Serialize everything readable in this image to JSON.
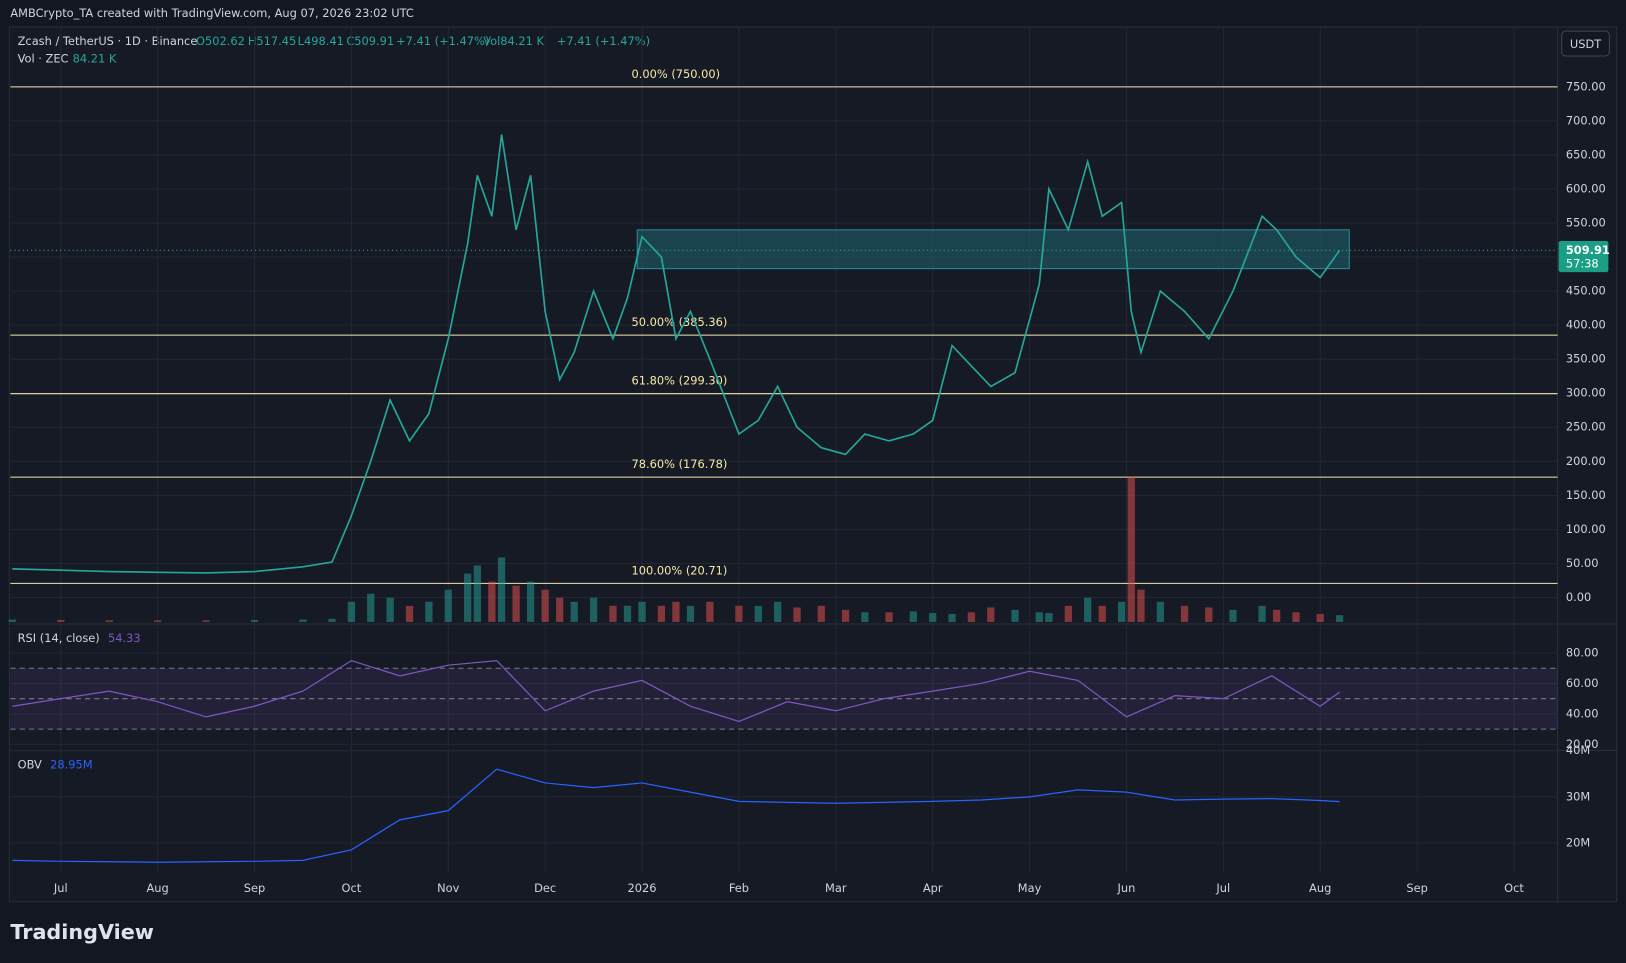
{
  "header": {
    "credit": "AMBCrypto_TA created with TradingView.com, Aug 07, 2026 23:02 UTC",
    "ohlc": [
      "O502.62",
      "H517.45",
      "L498.41",
      "C509.91"
    ],
    "change": "+7.41 (+1.47%)",
    "vol": "Vol84.21 K",
    "vol_change": "+7.41 (+1.47%)",
    "vol_legend": "Vol · ZEC",
    "vol_legend_value": "84.21 K",
    "currency": "USDT",
    "countdown": "57:38",
    "brand": "TradingView"
  },
  "chart_data": [
    {
      "type": "line",
      "title": "Zcash / TetherUS · 1D · Binance",
      "color": "#26a69a",
      "down_color": "#ef5350",
      "grid": true,
      "x": [
        -0.5,
        0,
        0.5,
        1,
        1.5,
        2,
        2.5,
        2.8,
        3.0,
        3.2,
        3.4,
        3.6,
        3.8,
        4.0,
        4.2,
        4.3,
        4.45,
        4.55,
        4.7,
        4.85,
        5.0,
        5.15,
        5.3,
        5.5,
        5.7,
        5.85,
        6.0,
        6.2,
        6.35,
        6.5,
        6.7,
        7.0,
        7.2,
        7.4,
        7.6,
        7.85,
        8.1,
        8.3,
        8.55,
        8.8,
        9.0,
        9.2,
        9.4,
        9.6,
        9.85,
        10.1,
        10.2,
        10.4,
        10.6,
        10.75,
        10.95,
        11.05,
        11.15,
        11.35,
        11.6,
        11.85,
        12.1,
        12.4,
        12.55,
        12.75,
        13.0,
        13.2
      ],
      "values": [
        42,
        40,
        38,
        37,
        36,
        38,
        45,
        52,
        120,
        200,
        290,
        230,
        270,
        380,
        520,
        620,
        560,
        680,
        540,
        620,
        420,
        320,
        360,
        450,
        380,
        440,
        530,
        500,
        380,
        420,
        350,
        240,
        260,
        310,
        250,
        220,
        210,
        240,
        230,
        240,
        260,
        370,
        340,
        310,
        330,
        460,
        600,
        540,
        640,
        560,
        580,
        420,
        360,
        450,
        420,
        380,
        450,
        560,
        540,
        500,
        470,
        509.91
      ],
      "volume": [
        30,
        25,
        20,
        20,
        20,
        25,
        30,
        40,
        250,
        350,
        300,
        200,
        250,
        400,
        600,
        700,
        500,
        800,
        450,
        500,
        400,
        300,
        250,
        300,
        200,
        200,
        250,
        200,
        250,
        200,
        250,
        200,
        200,
        250,
        180,
        200,
        150,
        120,
        120,
        130,
        110,
        100,
        120,
        180,
        150,
        120,
        110,
        200,
        300,
        200,
        250,
        1800,
        400,
        250,
        200,
        180,
        150,
        200,
        150,
        120,
        100,
        84.21
      ],
      "xlim": [
        -0.52,
        15.45
      ],
      "xticks": [
        {
          "value": 0,
          "label": "Jul"
        },
        {
          "value": 1,
          "label": "Aug"
        },
        {
          "value": 2,
          "label": "Sep"
        },
        {
          "value": 3,
          "label": "Oct"
        },
        {
          "value": 4,
          "label": "Nov"
        },
        {
          "value": 5,
          "label": "Dec"
        },
        {
          "value": 6,
          "label": "2026"
        },
        {
          "value": 7,
          "label": "Feb"
        },
        {
          "value": 8,
          "label": "Mar"
        },
        {
          "value": 9,
          "label": "Apr"
        },
        {
          "value": 10,
          "label": "May"
        },
        {
          "value": 11,
          "label": "Jun"
        },
        {
          "value": 12,
          "label": "Jul"
        },
        {
          "value": 13,
          "label": "Aug"
        },
        {
          "value": 14,
          "label": "Sep"
        },
        {
          "value": 15,
          "label": "Oct"
        }
      ],
      "ylim": [
        -36,
        838
      ],
      "yticks": [
        {
          "value": 0,
          "label": "0.00"
        },
        {
          "value": 50,
          "label": "50.00"
        },
        {
          "value": 100,
          "label": "100.00"
        },
        {
          "value": 150,
          "label": "150.00"
        },
        {
          "value": 200,
          "label": "200.00"
        },
        {
          "value": 250,
          "label": "250.00"
        },
        {
          "value": 300,
          "label": "300.00"
        },
        {
          "value": 350,
          "label": "350.00"
        },
        {
          "value": 400,
          "label": "400.00"
        },
        {
          "value": 450,
          "label": "450.00"
        },
        {
          "value": 500,
          "label": "500.00"
        },
        {
          "value": 550,
          "label": "550.00"
        },
        {
          "value": 600,
          "label": "600.00"
        },
        {
          "value": 650,
          "label": "650.00"
        },
        {
          "value": 700,
          "label": "700.00"
        },
        {
          "value": 750,
          "label": "750.00"
        }
      ],
      "fib_levels": [
        {
          "value": 750,
          "label": "0.00% (750.00)"
        },
        {
          "value": 385.36,
          "label": "50.00% (385.36)"
        },
        {
          "value": 299.3,
          "label": "61.80% (299.30)"
        },
        {
          "value": 176.78,
          "label": "78.60% (176.78)"
        },
        {
          "value": 20.71,
          "label": "100.00% (20.71)"
        }
      ],
      "zone": {
        "x": [
          5.95,
          13.3
        ],
        "y": [
          483,
          540
        ]
      },
      "last_price": 509.91
    },
    {
      "type": "line",
      "title": "RSI (14, close)",
      "color": "#7e57c2",
      "grid": true,
      "x": [
        -0.5,
        0,
        0.5,
        1,
        1.5,
        2,
        2.5,
        3,
        3.5,
        4,
        4.5,
        5,
        5.5,
        6,
        6.5,
        7,
        7.5,
        8,
        8.5,
        9,
        9.5,
        10,
        10.5,
        11,
        11.5,
        12,
        12.5,
        13,
        13.2
      ],
      "values": [
        45,
        50,
        55,
        48,
        38,
        45,
        55,
        75,
        65,
        72,
        75,
        42,
        55,
        62,
        45,
        35,
        48,
        42,
        50,
        55,
        60,
        68,
        62,
        38,
        52,
        50,
        65,
        45,
        54.33
      ],
      "xlim": [
        -0.52,
        15.45
      ],
      "ylim": [
        17.3,
        97.7
      ],
      "yticks": [
        {
          "value": 80,
          "label": "80.00"
        },
        {
          "value": 60,
          "label": "60.00"
        },
        {
          "value": 40,
          "label": "40.00"
        },
        {
          "value": 20,
          "label": "20.00"
        }
      ],
      "levels": [
        70,
        50,
        30
      ]
    },
    {
      "type": "line",
      "title": "OBV",
      "last_label": "28.95M",
      "color": "#2962ff",
      "grid": true,
      "x": [
        -0.5,
        0,
        0.5,
        1,
        1.5,
        2,
        2.5,
        3,
        3.5,
        4,
        4.5,
        5,
        5.5,
        6,
        6.5,
        7,
        7.5,
        8,
        8.5,
        9,
        9.5,
        10,
        10.5,
        11,
        11.5,
        12,
        12.5,
        13,
        13.2
      ],
      "values": [
        16.2,
        16.0,
        15.9,
        15.8,
        15.9,
        16.0,
        16.2,
        18.5,
        25,
        27,
        36,
        33,
        32,
        33,
        31,
        29,
        28.8,
        28.6,
        28.8,
        29,
        29.3,
        30,
        31.5,
        31,
        29.3,
        29.5,
        29.6,
        29.2,
        28.95
      ],
      "xlim": [
        -0.52,
        15.45
      ],
      "ylim": [
        13.5,
        39.6
      ],
      "yticks": [
        {
          "value": 40,
          "label": "40M"
        },
        {
          "value": 30,
          "label": "30M"
        },
        {
          "value": 20,
          "label": "20M"
        }
      ]
    }
  ]
}
